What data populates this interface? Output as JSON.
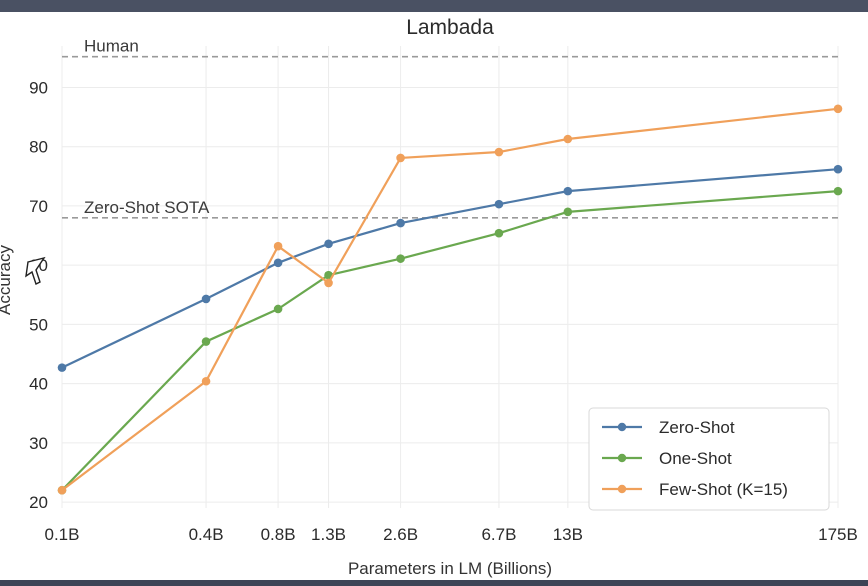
{
  "chart_data": {
    "type": "line",
    "title": "Lambada",
    "xlabel": "Parameters in LM (Billions)",
    "ylabel": "Accuracy",
    "categories": [
      "0.1B",
      "0.4B",
      "0.8B",
      "1.3B",
      "2.6B",
      "6.7B",
      "13B",
      "175B"
    ],
    "x_scale": "log",
    "x_values": [
      0.1,
      0.4,
      0.8,
      1.3,
      2.6,
      6.7,
      13,
      175
    ],
    "ylim": [
      19,
      97
    ],
    "yticks": [
      20,
      30,
      40,
      50,
      60,
      70,
      80,
      90
    ],
    "grid": true,
    "legend_position": "bottom-right",
    "series": [
      {
        "name": "Zero-Shot",
        "color": "#4e79a7",
        "values": [
          42.7,
          54.3,
          60.4,
          63.6,
          67.1,
          70.3,
          72.5,
          76.2
        ]
      },
      {
        "name": "One-Shot",
        "color": "#6aa84f",
        "values": [
          22.0,
          47.1,
          52.6,
          58.3,
          61.1,
          65.4,
          69.0,
          72.5
        ]
      },
      {
        "name": "Few-Shot (K=15)",
        "color": "#f0a05a",
        "values": [
          22.0,
          40.4,
          63.2,
          57.0,
          78.1,
          79.1,
          81.3,
          86.4
        ]
      }
    ],
    "reference_lines": [
      {
        "label": "Human",
        "value": 95.2
      },
      {
        "label": "Zero-Shot SOTA",
        "value": 68.0
      }
    ]
  }
}
